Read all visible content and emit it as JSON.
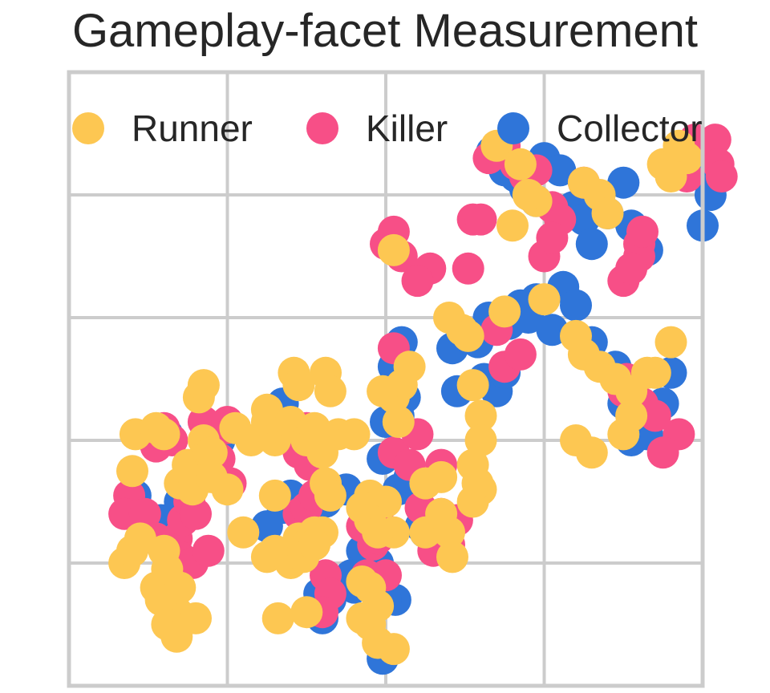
{
  "chart_data": {
    "type": "scatter",
    "title": "Gameplay-facet Measurement",
    "xlabel": "",
    "ylabel": "",
    "xlim": [
      0,
      4
    ],
    "ylim": [
      0,
      5
    ],
    "grid": true,
    "x_ticks": [
      1,
      2,
      3
    ],
    "y_ticks": [
      1,
      2,
      3,
      4
    ],
    "legend": {
      "placement": "top",
      "frame": false,
      "order": [
        "Runner",
        "Killer",
        "Collector"
      ]
    },
    "series": [
      {
        "name": "Collector",
        "color": "#2F75D9",
        "points": [
          [
            0.38,
            1.4
          ],
          [
            0.42,
            1.55
          ],
          [
            0.5,
            1.3
          ],
          [
            0.46,
            1.2
          ],
          [
            0.58,
            1.35
          ],
          [
            0.7,
            1.5
          ],
          [
            0.88,
            1.8
          ],
          [
            0.95,
            2.0
          ],
          [
            0.62,
            2.05
          ],
          [
            0.8,
            1.75
          ],
          [
            1.35,
            2.3
          ],
          [
            1.35,
            1.45
          ],
          [
            1.4,
            1.55
          ],
          [
            1.55,
            1.9
          ],
          [
            1.62,
            1.5
          ],
          [
            1.75,
            1.6
          ],
          [
            1.8,
            0.8
          ],
          [
            1.85,
            1.1
          ],
          [
            2.0,
            2.15
          ],
          [
            1.98,
            1.85
          ],
          [
            2.08,
            1.6
          ],
          [
            2.15,
            1.7
          ],
          [
            2.22,
            1.3
          ],
          [
            2.25,
            1.25
          ],
          [
            2.35,
            1.15
          ],
          [
            1.88,
            1.02
          ],
          [
            1.95,
            1.0
          ],
          [
            1.78,
            0.9
          ],
          [
            2.06,
            0.7
          ],
          [
            2.0,
            0.7
          ],
          [
            1.98,
            0.22
          ],
          [
            2.08,
            2.2
          ],
          [
            2.12,
            2.35
          ],
          [
            2.05,
            2.6
          ],
          [
            2.1,
            2.8
          ],
          [
            2.42,
            2.75
          ],
          [
            2.45,
            2.4
          ],
          [
            2.58,
            2.8
          ],
          [
            2.62,
            2.5
          ],
          [
            2.7,
            2.4
          ],
          [
            2.75,
            2.55
          ],
          [
            2.65,
            3.0
          ],
          [
            2.78,
            2.95
          ],
          [
            2.85,
            3.1
          ],
          [
            2.9,
            3.0
          ],
          [
            2.95,
            3.15
          ],
          [
            3.05,
            2.9
          ],
          [
            3.12,
            3.25
          ],
          [
            3.2,
            3.1
          ],
          [
            3.3,
            2.8
          ],
          [
            3.45,
            2.6
          ],
          [
            3.5,
            2.3
          ],
          [
            3.58,
            2.3
          ],
          [
            3.75,
            2.3
          ],
          [
            3.8,
            2.55
          ],
          [
            3.55,
            2.0
          ],
          [
            3.65,
            2.05
          ],
          [
            2.67,
            4.35
          ],
          [
            2.75,
            4.2
          ],
          [
            2.82,
            4.15
          ],
          [
            2.88,
            4.05
          ],
          [
            2.95,
            3.95
          ],
          [
            3.0,
            4.3
          ],
          [
            3.1,
            4.2
          ],
          [
            3.18,
            3.9
          ],
          [
            3.25,
            3.8
          ],
          [
            3.4,
            3.85
          ],
          [
            3.55,
            3.75
          ],
          [
            3.65,
            3.55
          ],
          [
            3.9,
            4.35
          ],
          [
            4.0,
            4.25
          ],
          [
            4.05,
            4.0
          ],
          [
            4.0,
            3.75
          ],
          [
            3.3,
            3.6
          ],
          [
            3.5,
            4.1
          ],
          [
            3.85,
            4.25
          ],
          [
            1.65,
            0.7
          ],
          [
            1.6,
            0.55
          ],
          [
            1.58,
            0.75
          ],
          [
            1.25,
            1.3
          ]
        ]
      },
      {
        "name": "Killer",
        "color": "#F74F87",
        "points": [
          [
            0.38,
            1.55
          ],
          [
            0.35,
            1.4
          ],
          [
            0.48,
            1.4
          ],
          [
            0.55,
            1.2
          ],
          [
            0.62,
            1.15
          ],
          [
            0.68,
            1.2
          ],
          [
            0.72,
            1.35
          ],
          [
            0.76,
            1.5
          ],
          [
            0.8,
            1.4
          ],
          [
            0.7,
            1.05
          ],
          [
            0.78,
            1.0
          ],
          [
            0.88,
            1.1
          ],
          [
            0.55,
            1.95
          ],
          [
            0.6,
            2.1
          ],
          [
            0.65,
            2.0
          ],
          [
            0.85,
            2.15
          ],
          [
            0.95,
            1.85
          ],
          [
            1.02,
            1.65
          ],
          [
            1.0,
            2.15
          ],
          [
            1.45,
            1.4
          ],
          [
            1.5,
            1.45
          ],
          [
            1.55,
            1.55
          ],
          [
            1.45,
            1.9
          ],
          [
            1.55,
            2.0
          ],
          [
            1.5,
            2.1
          ],
          [
            1.52,
            1.8
          ],
          [
            1.62,
            0.9
          ],
          [
            1.65,
            0.75
          ],
          [
            1.85,
            1.3
          ],
          [
            1.95,
            1.35
          ],
          [
            1.92,
            1.15
          ],
          [
            1.88,
            0.9
          ],
          [
            2.0,
            0.9
          ],
          [
            1.95,
            1.2
          ],
          [
            2.05,
            1.9
          ],
          [
            2.15,
            1.8
          ],
          [
            2.2,
            2.05
          ],
          [
            2.35,
            1.8
          ],
          [
            2.22,
            1.45
          ],
          [
            2.3,
            1.1
          ],
          [
            2.4,
            1.15
          ],
          [
            2.45,
            1.35
          ],
          [
            2.35,
            1.4
          ],
          [
            2.0,
            3.6
          ],
          [
            2.1,
            3.5
          ],
          [
            2.05,
            3.7
          ],
          [
            2.28,
            3.4
          ],
          [
            2.2,
            3.3
          ],
          [
            2.52,
            3.4
          ],
          [
            2.55,
            3.8
          ],
          [
            2.6,
            3.8
          ],
          [
            2.7,
            2.9
          ],
          [
            2.75,
            2.6
          ],
          [
            2.85,
            2.7
          ],
          [
            3.0,
            3.5
          ],
          [
            3.05,
            3.9
          ],
          [
            3.1,
            3.8
          ],
          [
            2.95,
            4.2
          ],
          [
            2.65,
            4.3
          ],
          [
            2.75,
            4.4
          ],
          [
            2.82,
            4.25
          ],
          [
            2.88,
            4.15
          ],
          [
            3.05,
            3.65
          ],
          [
            3.25,
            4.1
          ],
          [
            3.5,
            3.3
          ],
          [
            3.6,
            3.6
          ],
          [
            3.6,
            3.5
          ],
          [
            3.62,
            3.7
          ],
          [
            3.55,
            3.4
          ],
          [
            3.9,
            4.15
          ],
          [
            3.95,
            4.45
          ],
          [
            4.0,
            4.4
          ],
          [
            4.08,
            4.45
          ],
          [
            4.1,
            4.25
          ],
          [
            4.12,
            4.15
          ],
          [
            3.52,
            2.5
          ],
          [
            3.5,
            2.4
          ],
          [
            3.62,
            2.3
          ],
          [
            3.7,
            2.2
          ],
          [
            3.85,
            2.05
          ],
          [
            3.75,
            1.9
          ],
          [
            1.6,
            0.6
          ],
          [
            1.0,
            2.1
          ],
          [
            2.05,
            2.75
          ]
        ]
      },
      {
        "name": "Runner",
        "color": "#FDC752",
        "points": [
          [
            0.35,
            1.0
          ],
          [
            0.4,
            1.1
          ],
          [
            0.45,
            1.2
          ],
          [
            0.6,
            1.1
          ],
          [
            0.62,
            0.95
          ],
          [
            0.55,
            0.8
          ],
          [
            0.65,
            0.75
          ],
          [
            0.7,
            0.8
          ],
          [
            0.58,
            0.7
          ],
          [
            0.68,
            0.6
          ],
          [
            0.72,
            0.55
          ],
          [
            0.62,
            0.5
          ],
          [
            0.8,
            0.55
          ],
          [
            0.68,
            0.4
          ],
          [
            0.42,
            2.05
          ],
          [
            0.55,
            2.1
          ],
          [
            0.6,
            2.05
          ],
          [
            0.4,
            1.75
          ],
          [
            0.75,
            1.8
          ],
          [
            0.7,
            1.65
          ],
          [
            0.78,
            1.6
          ],
          [
            0.85,
            2.0
          ],
          [
            0.88,
            1.9
          ],
          [
            0.9,
            1.9
          ],
          [
            1.0,
            1.6
          ],
          [
            0.82,
            2.35
          ],
          [
            0.85,
            2.45
          ],
          [
            1.05,
            2.1
          ],
          [
            1.15,
            2.0
          ],
          [
            1.25,
            2.15
          ],
          [
            1.25,
            2.25
          ],
          [
            1.3,
            2.0
          ],
          [
            1.35,
            2.1
          ],
          [
            1.4,
            2.15
          ],
          [
            1.3,
            1.55
          ],
          [
            1.45,
            1.2
          ],
          [
            1.5,
            1.15
          ],
          [
            1.55,
            1.25
          ],
          [
            1.5,
            2.0
          ],
          [
            1.42,
            2.55
          ],
          [
            1.45,
            2.45
          ],
          [
            1.55,
            2.1
          ],
          [
            1.6,
            1.9
          ],
          [
            1.62,
            1.65
          ],
          [
            1.65,
            1.55
          ],
          [
            1.6,
            1.25
          ],
          [
            1.7,
            2.05
          ],
          [
            1.8,
            2.05
          ],
          [
            1.62,
            2.55
          ],
          [
            1.65,
            2.4
          ],
          [
            1.9,
            1.55
          ],
          [
            2.0,
            1.5
          ],
          [
            1.85,
            1.45
          ],
          [
            2.05,
            1.25
          ],
          [
            1.9,
            1.35
          ],
          [
            1.95,
            1.25
          ],
          [
            2.25,
            1.25
          ],
          [
            2.35,
            1.4
          ],
          [
            2.4,
            1.25
          ],
          [
            2.42,
            1.05
          ],
          [
            2.55,
            1.5
          ],
          [
            2.6,
            1.6
          ],
          [
            2.58,
            1.65
          ],
          [
            2.55,
            1.8
          ],
          [
            2.25,
            1.65
          ],
          [
            2.35,
            1.7
          ],
          [
            1.85,
            0.85
          ],
          [
            1.9,
            0.8
          ],
          [
            1.95,
            0.65
          ],
          [
            1.85,
            0.55
          ],
          [
            1.9,
            0.5
          ],
          [
            1.95,
            0.35
          ],
          [
            2.05,
            0.3
          ],
          [
            1.1,
            1.25
          ],
          [
            1.25,
            1.05
          ],
          [
            1.3,
            1.1
          ],
          [
            1.4,
            1.0
          ],
          [
            1.48,
            1.05
          ],
          [
            1.5,
            0.6
          ],
          [
            1.55,
            1.15
          ],
          [
            2.05,
            2.35
          ],
          [
            2.1,
            2.45
          ],
          [
            2.15,
            2.6
          ],
          [
            2.08,
            2.15
          ],
          [
            1.98,
            2.4
          ],
          [
            2.05,
            3.55
          ],
          [
            2.4,
            3.0
          ],
          [
            2.48,
            2.9
          ],
          [
            2.52,
            2.85
          ],
          [
            2.55,
            2.45
          ],
          [
            2.6,
            2.2
          ],
          [
            2.6,
            2.0
          ],
          [
            2.75,
            3.05
          ],
          [
            2.8,
            3.75
          ],
          [
            3.0,
            3.15
          ],
          [
            3.2,
            2.85
          ],
          [
            3.25,
            2.7
          ],
          [
            3.35,
            2.6
          ],
          [
            3.45,
            2.5
          ],
          [
            3.55,
            2.4
          ],
          [
            3.65,
            2.55
          ],
          [
            3.7,
            2.55
          ],
          [
            3.8,
            2.8
          ],
          [
            3.5,
            2.05
          ],
          [
            3.55,
            2.2
          ],
          [
            3.2,
            2.0
          ],
          [
            3.3,
            1.9
          ],
          [
            2.95,
            3.95
          ],
          [
            2.9,
            4.0
          ],
          [
            2.7,
            4.4
          ],
          [
            2.85,
            4.25
          ],
          [
            3.25,
            4.1
          ],
          [
            3.35,
            4.0
          ],
          [
            3.4,
            3.85
          ],
          [
            3.75,
            4.25
          ],
          [
            3.9,
            4.3
          ],
          [
            3.85,
            4.4
          ],
          [
            3.8,
            4.15
          ],
          [
            0.9,
            1.7
          ],
          [
            1.32,
            0.55
          ]
        ]
      }
    ]
  }
}
